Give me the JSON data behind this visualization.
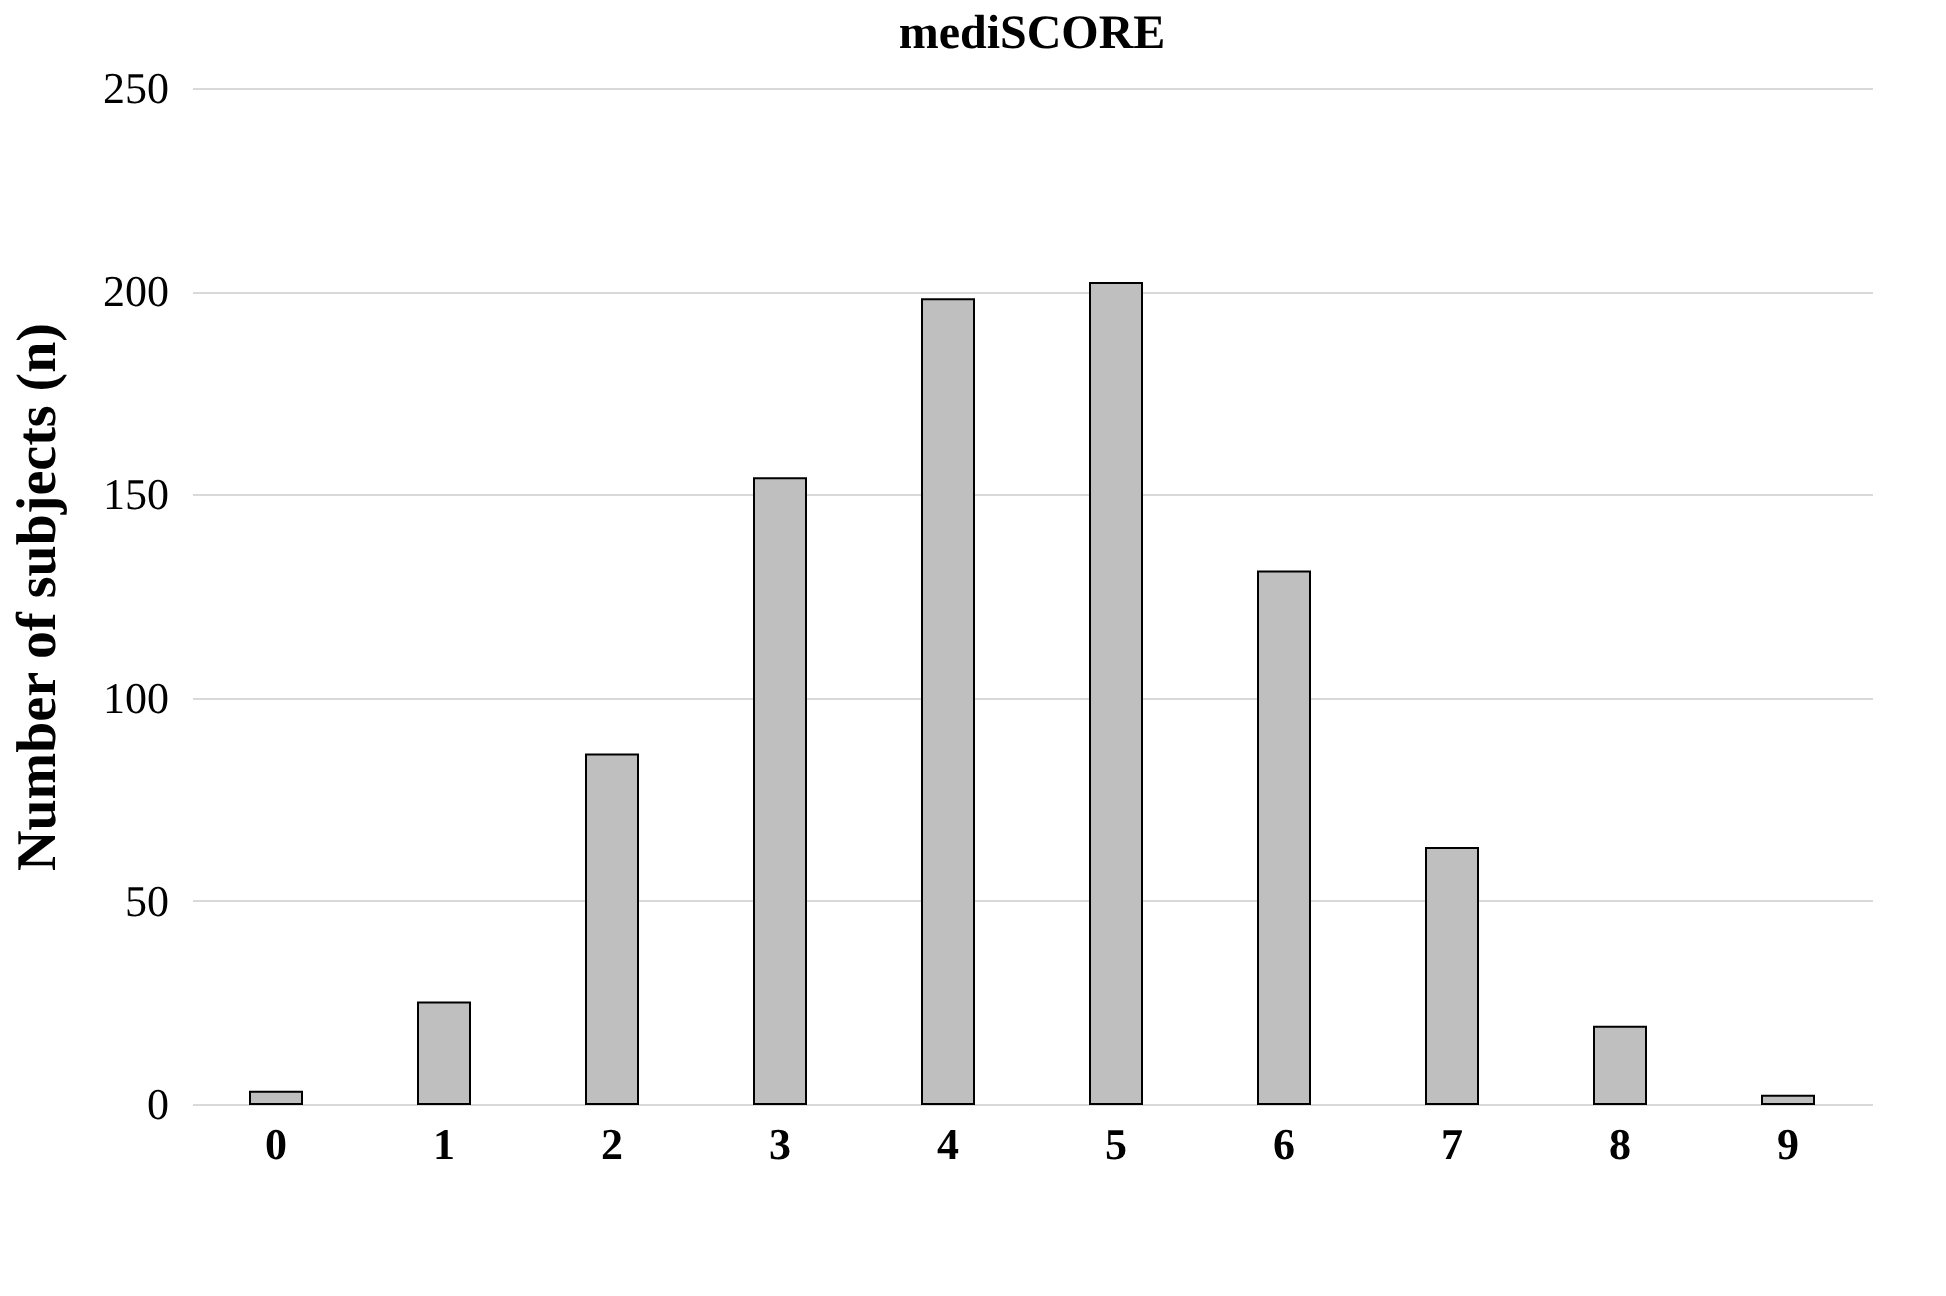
{
  "chart_data": {
    "type": "bar",
    "title": "mediSCORE",
    "ylabel": "Number of subjects (n)",
    "categories": [
      "0",
      "1",
      "2",
      "3",
      "4",
      "5",
      "6",
      "7",
      "8",
      "9"
    ],
    "values": [
      3,
      25,
      86,
      154,
      198,
      202,
      131,
      63,
      19,
      2
    ],
    "color": "#bfbfbf",
    "ylim": [
      0,
      250
    ],
    "yticks": [
      0,
      50,
      100,
      150,
      200,
      250
    ],
    "grid": "y"
  }
}
